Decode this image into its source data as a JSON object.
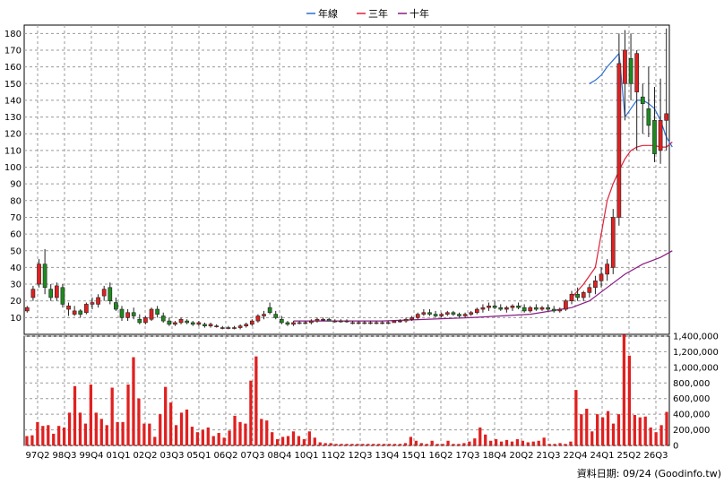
{
  "legend": [
    {
      "label": "年線",
      "color": "#2b6fd6"
    },
    {
      "label": "三年",
      "color": "#e0203a"
    },
    {
      "label": "十年",
      "color": "#8a1b84"
    }
  ],
  "credit": "資料日期: 09/24  (Goodinfo.tw)",
  "colors": {
    "up": "#e02020",
    "down": "#1e8a1e",
    "volume": "#e02020",
    "grid": "#9a9a9a"
  },
  "chart_data": [
    {
      "type": "candlestick",
      "title": "",
      "yticks": [
        10,
        20,
        30,
        40,
        50,
        60,
        70,
        80,
        90,
        100,
        110,
        120,
        130,
        140,
        150,
        160,
        170,
        180
      ],
      "ylim": [
        0,
        185
      ],
      "xlabels": [
        "97Q2",
        "98Q3",
        "99Q4",
        "01Q1",
        "02Q2",
        "03Q3",
        "05Q1",
        "06Q2",
        "07Q3",
        "08Q4",
        "10Q1",
        "11Q2",
        "12Q3",
        "13Q4",
        "15Q1",
        "16Q2",
        "17Q3",
        "18Q4",
        "20Q2",
        "21Q3",
        "22Q4",
        "24Q1",
        "25Q2",
        "26Q3"
      ],
      "ohlc": [
        [
          14,
          17,
          13,
          16
        ],
        [
          22,
          29,
          20,
          27
        ],
        [
          30,
          45,
          28,
          42
        ],
        [
          42,
          51,
          24,
          28
        ],
        [
          27,
          30,
          20,
          22
        ],
        [
          22,
          31,
          20,
          29
        ],
        [
          28,
          30,
          16,
          18
        ],
        [
          15,
          19,
          11,
          17
        ],
        [
          12,
          17,
          11,
          14
        ],
        [
          14,
          15,
          10,
          12
        ],
        [
          13,
          19,
          12,
          18
        ],
        [
          18,
          22,
          15,
          19
        ],
        [
          18,
          24,
          16,
          22
        ],
        [
          23,
          29,
          20,
          27
        ],
        [
          28,
          31,
          18,
          20
        ],
        [
          19,
          22,
          14,
          15
        ],
        [
          15,
          17,
          8,
          10
        ],
        [
          10,
          15,
          8,
          13
        ],
        [
          13,
          16,
          9,
          11
        ],
        [
          9,
          12,
          6,
          7
        ],
        [
          7,
          11,
          6,
          10
        ],
        [
          9,
          16,
          8,
          15
        ],
        [
          15,
          17,
          10,
          12
        ],
        [
          11,
          13,
          7,
          8
        ],
        [
          8,
          10,
          5,
          6
        ],
        [
          6,
          8,
          5,
          7
        ],
        [
          7,
          10,
          6,
          9
        ],
        [
          8,
          9,
          6,
          7
        ],
        [
          7,
          8,
          5,
          6
        ],
        [
          6,
          8,
          5,
          7
        ],
        [
          6,
          7,
          4,
          5
        ],
        [
          5,
          7,
          4,
          6
        ],
        [
          5,
          6,
          4,
          5
        ],
        [
          4,
          5,
          3,
          4
        ],
        [
          4,
          5,
          3,
          4
        ],
        [
          4,
          5,
          3,
          4
        ],
        [
          4,
          6,
          3,
          5
        ],
        [
          5,
          7,
          4,
          6
        ],
        [
          6,
          9,
          5,
          8
        ],
        [
          8,
          12,
          7,
          11
        ],
        [
          11,
          14,
          9,
          12
        ],
        [
          16,
          19,
          12,
          13
        ],
        [
          12,
          14,
          9,
          10
        ],
        [
          9,
          11,
          6,
          7
        ],
        [
          7,
          8,
          5,
          6
        ],
        [
          6,
          8,
          5,
          7
        ],
        [
          7,
          8,
          6,
          7
        ],
        [
          7,
          8,
          6,
          7
        ],
        [
          7,
          9,
          6,
          8
        ],
        [
          8,
          10,
          7,
          9
        ],
        [
          9,
          10,
          8,
          9
        ],
        [
          9,
          10,
          8,
          8
        ],
        [
          8,
          9,
          7,
          8
        ],
        [
          8,
          9,
          7,
          8
        ],
        [
          8,
          9,
          7,
          8
        ],
        [
          7,
          8,
          6,
          7
        ],
        [
          7,
          8,
          6,
          7
        ],
        [
          7,
          8,
          6,
          7
        ],
        [
          7,
          8,
          6,
          7
        ],
        [
          7,
          8,
          6,
          7
        ],
        [
          7,
          8,
          6,
          7
        ],
        [
          7,
          8,
          6,
          7
        ],
        [
          7,
          8,
          7,
          8
        ],
        [
          8,
          9,
          7,
          8
        ],
        [
          8,
          10,
          7,
          9
        ],
        [
          9,
          11,
          8,
          10
        ],
        [
          10,
          13,
          9,
          12
        ],
        [
          12,
          15,
          11,
          13
        ],
        [
          13,
          15,
          11,
          12
        ],
        [
          12,
          14,
          10,
          11
        ],
        [
          11,
          13,
          10,
          12
        ],
        [
          12,
          14,
          11,
          13
        ],
        [
          13,
          14,
          11,
          12
        ],
        [
          12,
          13,
          10,
          11
        ],
        [
          11,
          13,
          10,
          12
        ],
        [
          12,
          14,
          11,
          13
        ],
        [
          13,
          16,
          12,
          15
        ],
        [
          15,
          18,
          13,
          16
        ],
        [
          16,
          19,
          14,
          17
        ],
        [
          17,
          20,
          15,
          16
        ],
        [
          16,
          18,
          14,
          15
        ],
        [
          15,
          17,
          13,
          16
        ],
        [
          16,
          18,
          14,
          17
        ],
        [
          17,
          19,
          15,
          16
        ],
        [
          16,
          18,
          13,
          14
        ],
        [
          14,
          17,
          13,
          16
        ],
        [
          16,
          18,
          14,
          15
        ],
        [
          15,
          17,
          14,
          16
        ],
        [
          16,
          18,
          14,
          15
        ],
        [
          15,
          17,
          13,
          14
        ],
        [
          14,
          16,
          13,
          15
        ],
        [
          15,
          21,
          14,
          20
        ],
        [
          20,
          26,
          18,
          24
        ],
        [
          24,
          28,
          20,
          22
        ],
        [
          22,
          26,
          20,
          25
        ],
        [
          25,
          30,
          22,
          28
        ],
        [
          28,
          35,
          24,
          32
        ],
        [
          32,
          40,
          28,
          36
        ],
        [
          36,
          45,
          32,
          42
        ],
        [
          40,
          75,
          36,
          70
        ],
        [
          70,
          180,
          65,
          162
        ],
        [
          150,
          182,
          128,
          170
        ],
        [
          165,
          180,
          140,
          150
        ],
        [
          145,
          170,
          110,
          168
        ],
        [
          142,
          150,
          120,
          138
        ],
        [
          135,
          160,
          118,
          125
        ],
        [
          128,
          148,
          103,
          108
        ],
        [
          110,
          153,
          102,
          128
        ],
        [
          128,
          183,
          110,
          132
        ]
      ],
      "ma_year": [
        [
          95,
          150
        ],
        [
          96,
          152
        ],
        [
          97,
          155
        ],
        [
          98,
          160
        ],
        [
          99,
          164
        ],
        [
          100,
          168
        ],
        [
          101,
          130
        ],
        [
          102,
          135
        ],
        [
          103,
          140
        ],
        [
          104,
          140
        ],
        [
          105,
          138
        ],
        [
          106,
          135
        ],
        [
          107,
          128
        ],
        [
          108,
          118
        ],
        [
          109,
          112
        ]
      ],
      "ma_three": [
        [
          92,
          22
        ],
        [
          94,
          30
        ],
        [
          96,
          40
        ],
        [
          98,
          80
        ],
        [
          99,
          90
        ],
        [
          100,
          98
        ],
        [
          101,
          105
        ],
        [
          102,
          110
        ],
        [
          103,
          112
        ],
        [
          104,
          113
        ],
        [
          105,
          113
        ],
        [
          106,
          113
        ],
        [
          107,
          112
        ],
        [
          108,
          112
        ],
        [
          109,
          115
        ]
      ],
      "ma_ten": [
        [
          45,
          8
        ],
        [
          60,
          8
        ],
        [
          75,
          10
        ],
        [
          85,
          12
        ],
        [
          92,
          16
        ],
        [
          95,
          20
        ],
        [
          98,
          28
        ],
        [
          101,
          36
        ],
        [
          104,
          42
        ],
        [
          107,
          46
        ],
        [
          109,
          50
        ]
      ]
    },
    {
      "type": "bar",
      "title": "",
      "yticks": [
        0,
        200000,
        400000,
        600000,
        800000,
        1000000,
        1200000,
        1400000
      ],
      "ytick_labels": [
        "0",
        "200,000",
        "400,000",
        "600,000",
        "800,000",
        "1,000,000",
        "1,200,000",
        "1,400,000"
      ],
      "ylim": [
        0,
        1400000
      ],
      "values": [
        120000,
        130000,
        300000,
        250000,
        260000,
        150000,
        250000,
        230000,
        420000,
        760000,
        420000,
        280000,
        780000,
        420000,
        340000,
        260000,
        740000,
        300000,
        300000,
        780000,
        1130000,
        600000,
        280000,
        280000,
        110000,
        400000,
        750000,
        550000,
        260000,
        420000,
        460000,
        240000,
        170000,
        200000,
        230000,
        120000,
        160000,
        100000,
        190000,
        380000,
        300000,
        280000,
        830000,
        1140000,
        340000,
        320000,
        170000,
        80000,
        110000,
        120000,
        180000,
        120000,
        80000,
        180000,
        100000,
        40000,
        30000,
        30000,
        20000,
        20000,
        20000,
        20000,
        20000,
        20000,
        20000,
        20000,
        20000,
        20000,
        20000,
        20000,
        20000,
        30000,
        110000,
        60000,
        30000,
        20000,
        60000,
        20000,
        20000,
        60000,
        20000,
        20000,
        30000,
        50000,
        90000,
        230000,
        140000,
        60000,
        80000,
        50000,
        70000,
        50000,
        80000,
        60000,
        40000,
        50000,
        60000,
        100000,
        20000,
        20000,
        30000,
        20000,
        50000,
        710000,
        400000,
        470000,
        180000,
        400000,
        360000,
        440000,
        280000,
        400000,
        1420000,
        1150000,
        390000,
        360000,
        370000,
        230000,
        170000,
        260000,
        430000
      ]
    }
  ]
}
